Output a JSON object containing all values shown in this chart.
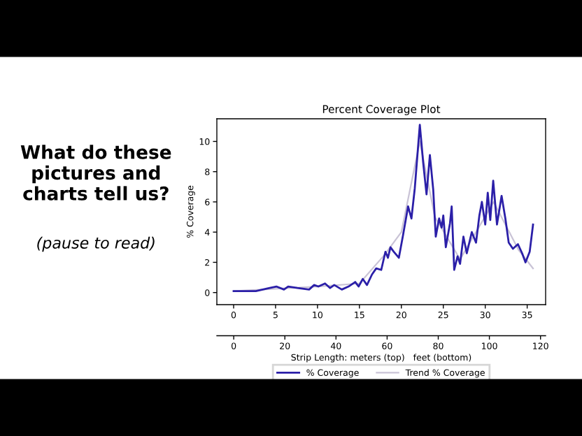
{
  "chart_data": {
    "type": "line",
    "title": "Percent Coverage Plot",
    "xlabel": "Strip Length: meters (top)   feet (bottom)",
    "ylabel": "% Coverage",
    "annotations": [
      "What do these pictures and charts tell us?",
      "(pause to read)"
    ],
    "xlim": [
      -2,
      37.2
    ],
    "xticks": [
      0,
      5,
      10,
      15,
      20,
      25,
      30,
      35
    ],
    "ylim": [
      -0.8,
      11.5
    ],
    "yticks": [
      0,
      2,
      4,
      6,
      8,
      10
    ],
    "x2lim": [
      -6.6,
      122
    ],
    "x2ticks": [
      0,
      20,
      40,
      60,
      80,
      100,
      120
    ],
    "grid": false,
    "legend": "bottom",
    "marker": "none",
    "series": [
      {
        "name": "% Coverage",
        "color": "#2b1fa8",
        "line_style": "solid",
        "x": [
          0,
          2.65,
          4.3,
          5.1,
          6,
          6.5,
          7.6,
          9,
          9.6,
          10.1,
          10.9,
          11.5,
          12,
          12.9,
          13.7,
          14.5,
          14.9,
          15.4,
          15.9,
          16.5,
          17,
          17.6,
          18.1,
          18.4,
          18.7,
          19.1,
          19.7,
          20.2,
          20.8,
          21.2,
          21.6,
          21.9,
          22.2,
          22.6,
          23,
          23.4,
          23.8,
          24.1,
          24.5,
          24.8,
          25,
          25.3,
          25.8,
          26,
          26.3,
          26.7,
          27,
          27.4,
          27.8,
          28.4,
          28.9,
          29.3,
          29.6,
          30,
          30.3,
          30.6,
          30.95,
          31.4,
          31.95,
          32.4,
          32.8,
          33.3,
          33.9,
          34.4,
          34.8,
          35.3,
          35.7
        ],
        "values": [
          0.1,
          0.1,
          0.3,
          0.4,
          0.2,
          0.4,
          0.3,
          0.2,
          0.5,
          0.4,
          0.6,
          0.3,
          0.5,
          0.2,
          0.4,
          0.7,
          0.4,
          0.9,
          0.5,
          1.2,
          1.6,
          1.5,
          2.7,
          2.3,
          3.0,
          2.7,
          2.3,
          3.8,
          5.7,
          4.9,
          6.9,
          9.0,
          11.1,
          8.6,
          6.5,
          9.1,
          6.8,
          3.7,
          4.9,
          4.3,
          5.1,
          3.0,
          4.6,
          5.7,
          1.5,
          2.4,
          1.9,
          3.7,
          2.6,
          4.0,
          3.3,
          5.1,
          6.0,
          4.5,
          6.6,
          4.8,
          7.4,
          4.5,
          6.4,
          4.9,
          3.3,
          2.9,
          3.2,
          2.6,
          2.0,
          2.7,
          4.5
        ]
      },
      {
        "name": "Trend % Coverage",
        "color": "#c9c3d6",
        "line_style": "solid",
        "x": [
          0,
          10,
          15,
          18,
          20,
          22.2,
          24,
          27,
          31,
          34,
          35.7
        ],
        "values": [
          0.1,
          0.4,
          0.6,
          2.5,
          4.0,
          10.0,
          5.0,
          2.2,
          6.0,
          2.8,
          1.6
        ]
      }
    ]
  }
}
